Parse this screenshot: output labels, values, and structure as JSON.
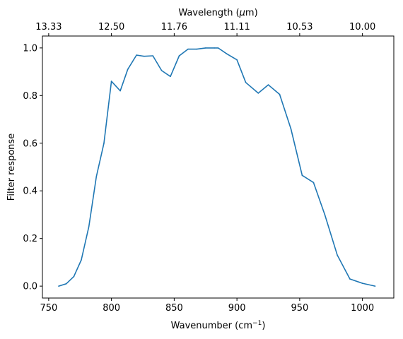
{
  "chart_data": {
    "type": "line",
    "xlabel": "Wavenumber (cm",
    "xlabel_superscript": "−1",
    "xlabel_suffix": ")",
    "ylabel": "Filter response",
    "top_xlabel": "Wavelength (",
    "top_xlabel_mu": "μ",
    "top_xlabel_suffix": "m)",
    "xlim": [
      745,
      1025
    ],
    "ylim": [
      -0.05,
      1.05
    ],
    "x_ticks": [
      750,
      800,
      850,
      900,
      950,
      1000
    ],
    "x_tick_labels": [
      "750",
      "800",
      "850",
      "900",
      "950",
      "1000"
    ],
    "y_ticks": [
      0.0,
      0.2,
      0.4,
      0.6,
      0.8,
      1.0
    ],
    "y_tick_labels": [
      "0.0",
      "0.2",
      "0.4",
      "0.6",
      "0.8",
      "1.0"
    ],
    "top_ticks": [
      750,
      800,
      850,
      900,
      950,
      1000
    ],
    "top_tick_labels": [
      "13.33",
      "12.50",
      "11.76",
      "11.11",
      "10.53",
      "10.00"
    ],
    "grid": false,
    "series": [
      {
        "color": "#1f77b4",
        "x": [
          758,
          764,
          770,
          776,
          782,
          788,
          794,
          800,
          807,
          813,
          820,
          826,
          833,
          840,
          847,
          854,
          861,
          868,
          875,
          882,
          885,
          892,
          900,
          907,
          917,
          925,
          934,
          943,
          952,
          961,
          970,
          980,
          990,
          1000,
          1010
        ],
        "y": [
          0.0,
          0.01,
          0.04,
          0.11,
          0.25,
          0.46,
          0.6,
          0.86,
          0.82,
          0.91,
          0.97,
          0.965,
          0.967,
          0.905,
          0.88,
          0.967,
          0.995,
          0.995,
          1.0,
          1.0,
          1.0,
          0.975,
          0.95,
          0.855,
          0.81,
          0.845,
          0.805,
          0.66,
          0.465,
          0.435,
          0.3,
          0.13,
          0.03,
          0.012,
          0.0
        ]
      }
    ]
  }
}
